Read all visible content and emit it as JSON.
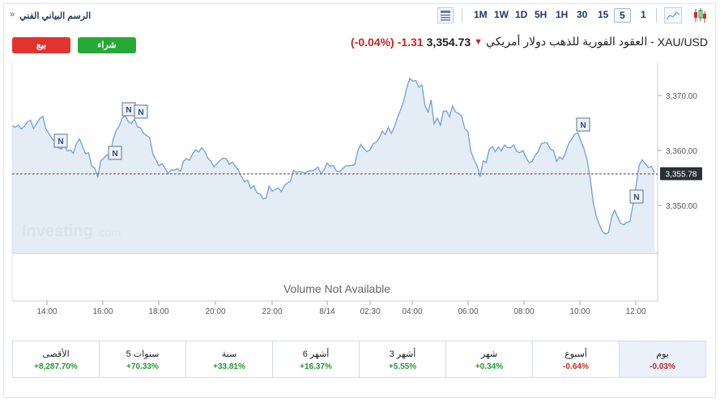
{
  "toolbar": {
    "timeframes": [
      "1",
      "5",
      "15",
      "30",
      "1H",
      "5H",
      "1D",
      "1W",
      "1M"
    ],
    "selected": "5",
    "breadcrumb": "الرسم البياني الفني",
    "breadcrumb_chevron": "»"
  },
  "buttons": {
    "sell": "بيع",
    "buy": "شراء"
  },
  "instrument": {
    "symbol": "XAU/USD",
    "name": "- العقود الفورية للذهب دولار أمريكي",
    "price": "3,354.73",
    "change": "-1.31",
    "change_pct": "(-0.04%)"
  },
  "chart_data": {
    "type": "area",
    "x_ticks": [
      "14:00",
      "16:00",
      "18:00",
      "20:00",
      "22:00",
      "8/14",
      "02:30",
      "04:00",
      "06:00",
      "08:00",
      "10:00",
      "12:00"
    ],
    "y_ticks": [
      "3,370.00",
      "3,360.00",
      "3,350.00"
    ],
    "ylim": [
      3340,
      3375
    ],
    "last_value_label": "3,355.78",
    "reference_line": 3355.78,
    "news_markers": 6,
    "news_marker_label": "N",
    "watermark_main": "Investing",
    "watermark_suffix": ".com",
    "volume_note": "Volume Not Available",
    "colors": {
      "line": "#6fa0d8",
      "fill": "#dfe9f3",
      "reference": "#e05050"
    },
    "values": [
      3364.5,
      3364.2,
      3364.6,
      3363.9,
      3364.4,
      3365.2,
      3365.5,
      3364.0,
      3364.9,
      3365.8,
      3366.2,
      3364.0,
      3363.1,
      3362.2,
      3361.5,
      3360.5,
      3360.3,
      3361.0,
      3359.9,
      3360.1,
      3359.5,
      3361.2,
      3362.1,
      3360.8,
      3359.4,
      3359.6,
      3357.2,
      3356.8,
      3355.2,
      3358.1,
      3358.6,
      3359.2,
      3359.0,
      3361.9,
      3363.6,
      3364.4,
      3365.9,
      3366.3,
      3365.2,
      3364.9,
      3365.7,
      3364.3,
      3364.1,
      3363.1,
      3362.7,
      3362.3,
      3359.4,
      3358.3,
      3357.2,
      3357.6,
      3356.8,
      3355.8,
      3356.5,
      3356.4,
      3356.7,
      3356.2,
      3358.0,
      3358.5,
      3358.2,
      3359.4,
      3360.1,
      3359.7,
      3360.5,
      3359.8,
      3358.6,
      3358.0,
      3357.0,
      3357.6,
      3358.2,
      3358.6,
      3358.5,
      3357.5,
      3357.9,
      3357.1,
      3356.4,
      3355.2,
      3354.3,
      3354.6,
      3353.1,
      3353.6,
      3352.3,
      3352.1,
      3351.2,
      3351.3,
      3353.5,
      3352.6,
      3352.9,
      3353.2,
      3352.5,
      3353.6,
      3354.1,
      3354.4,
      3356.4,
      3356.0,
      3356.2,
      3356.0,
      3355.9,
      3356.3,
      3356.3,
      3356.5,
      3357.0,
      3355.8,
      3356.5,
      3357.7,
      3357.1,
      3357.3,
      3356.3,
      3356.1,
      3356.6,
      3357.2,
      3357.2,
      3357.3,
      3357.4,
      3359.9,
      3361.1,
      3360.3,
      3359.8,
      3360.1,
      3361.2,
      3361.5,
      3362.2,
      3363.5,
      3362.9,
      3364.2,
      3363.1,
      3364.3,
      3366.0,
      3367.4,
      3368.9,
      3371.3,
      3373.1,
      3372.6,
      3372.7,
      3371.5,
      3371.9,
      3368.1,
      3367.0,
      3369.2,
      3364.8,
      3365.9,
      3364.6,
      3367.1,
      3367.2,
      3366.1,
      3368.1,
      3367.0,
      3366.7,
      3366.2,
      3364.0,
      3363.4,
      3359.8,
      3358.4,
      3357.2,
      3355.3,
      3358.1,
      3357.8,
      3360.2,
      3360.7,
      3359.8,
      3360.6,
      3359.9,
      3361.0,
      3360.5,
      3360.5,
      3361.0,
      3359.8,
      3359.6,
      3360.0,
      3358.7,
      3357.8,
      3358.0,
      3359.1,
      3359.8,
      3361.2,
      3361.4,
      3361.4,
      3360.2,
      3360.0,
      3358.0,
      3358.8,
      3358.4,
      3359.7,
      3361.3,
      3362.1,
      3363.0,
      3363.2,
      3361.6,
      3360.3,
      3358.3,
      3355.0,
      3350.5,
      3348.0,
      3346.5,
      3345.3,
      3344.8,
      3345.1,
      3347.9,
      3349.1,
      3347.9,
      3346.7,
      3346.5,
      3346.9,
      3347.1,
      3350.2,
      3353.5,
      3357.3,
      3358.3,
      3357.6,
      3356.9,
      3357.1,
      3356.0
    ]
  },
  "performance": [
    {
      "label": "يوم",
      "value": "-0.03%",
      "sign": "neg",
      "active": true
    },
    {
      "label": "أسبوع",
      "value": "-0.64%",
      "sign": "neg",
      "active": false
    },
    {
      "label": "شهر",
      "value": "+0.34%",
      "sign": "pos",
      "active": false
    },
    {
      "label": "3 أشهر",
      "value": "+5.55%",
      "sign": "pos",
      "active": false
    },
    {
      "label": "6 أشهر",
      "value": "+16.37%",
      "sign": "pos",
      "active": false
    },
    {
      "label": "سنة",
      "value": "+33.81%",
      "sign": "pos",
      "active": false
    },
    {
      "label": "5 سنوات",
      "value": "+70.33%",
      "sign": "pos",
      "active": false
    },
    {
      "label": "الأقصى",
      "value": "+8,287.70%",
      "sign": "pos",
      "active": false
    }
  ]
}
